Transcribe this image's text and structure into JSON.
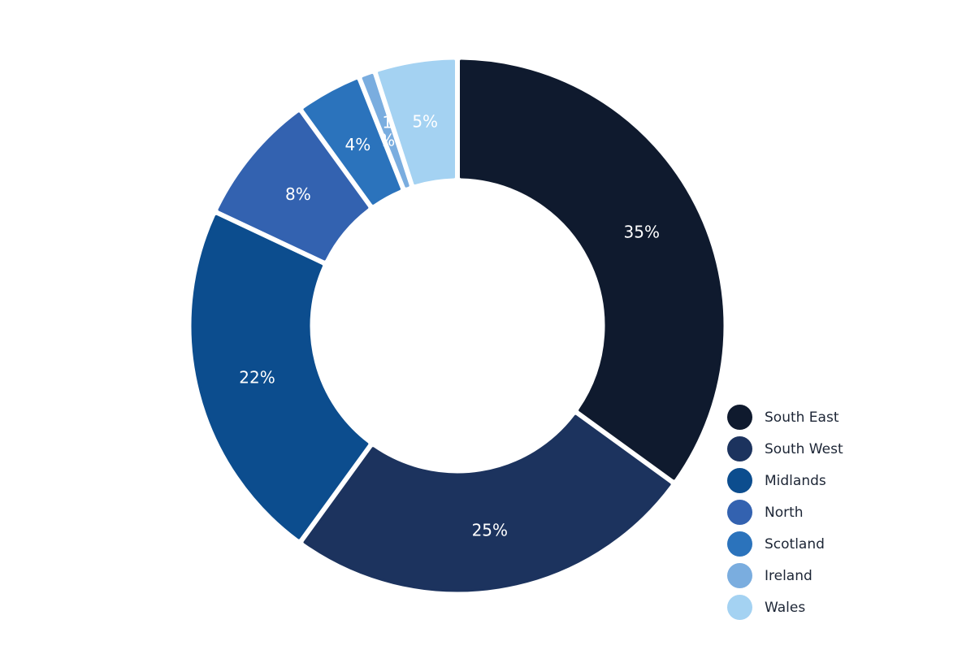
{
  "chart_data": {
    "type": "pie",
    "variant": "donut",
    "title": "",
    "slices": [
      {
        "name": "South East",
        "value": 35,
        "label": "35%",
        "color": "#0f1a2e"
      },
      {
        "name": "South West",
        "value": 25,
        "label": "25%",
        "color": "#1c335e"
      },
      {
        "name": "Midlands",
        "value": 22,
        "label": "22%",
        "color": "#0c4d8e"
      },
      {
        "name": "North",
        "value": 8,
        "label": "8%",
        "color": "#3362b0"
      },
      {
        "name": "Scotland",
        "value": 4,
        "label": "4%",
        "color": "#2b73bc"
      },
      {
        "name": "Ireland",
        "value": 1,
        "label": "1\n%",
        "color": "#7aaddf"
      },
      {
        "name": "Wales",
        "value": 5,
        "label": "5%",
        "color": "#a4d2f2"
      }
    ],
    "legend": {
      "position": "bottom-right",
      "entries": [
        "South East",
        "South West",
        "Midlands",
        "North",
        "Scotland",
        "Ireland",
        "Wales"
      ]
    }
  }
}
